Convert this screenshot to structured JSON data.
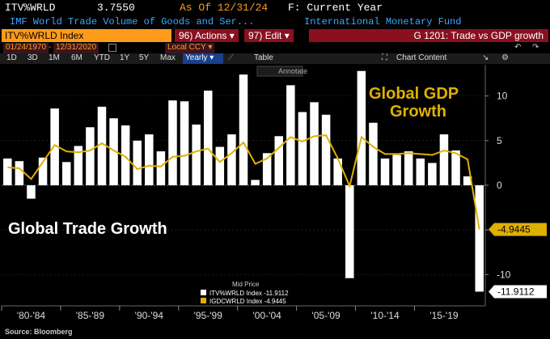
{
  "header": {
    "ticker": "ITV%WRLD",
    "value": "3.7550",
    "as_of": "As Of 12/31/24",
    "frequency_label": "F: Current Year",
    "description": "IMF World Trade Volume of Goods and Ser...",
    "source_name": "International Monetary Fund"
  },
  "toolbar": {
    "security": "ITV%WRLD Index",
    "actions_label": "96) Actions ▾",
    "edit_label": "97) Edit ▾",
    "chart_title": "G 1201: Trade vs GDP growth",
    "start_date": "01/24/1970",
    "end_date": "12/31/2020",
    "currency": "Local CCY",
    "periods": [
      "1D",
      "3D",
      "1M",
      "6M",
      "YTD",
      "1Y",
      "5Y",
      "Max"
    ],
    "selected_period": "Yearly",
    "table_label": "Table",
    "chart_content_label": "Chart Content"
  },
  "colors": {
    "trade_bars": "#ffffff",
    "gdp_line": "#e0b000",
    "accent_orange": "#ff9b1a",
    "header_red": "#8a1020"
  },
  "chart_data": {
    "type": "bar",
    "title": "",
    "xlabel": "",
    "ylabel": "",
    "ylim": [
      -13.5,
      13.5
    ],
    "yticks": [
      -10,
      -5,
      0,
      5,
      10
    ],
    "x_tick_labels": [
      "'80-'84",
      "'85-'89",
      "'90-'94",
      "'95-'99",
      "'00-'04",
      "'05-'09",
      "'10-'14",
      "'15-'19"
    ],
    "annotations": [
      "Global Trade Growth",
      "Global GDP Growth"
    ],
    "annotate_button": "Annotate",
    "legend_header": "Mid Price",
    "categories": [
      "1980",
      "1981",
      "1982",
      "1983",
      "1984",
      "1985",
      "1986",
      "1987",
      "1988",
      "1989",
      "1990",
      "1991",
      "1992",
      "1993",
      "1994",
      "1995",
      "1996",
      "1997",
      "1998",
      "1999",
      "2000",
      "2001",
      "2002",
      "2003",
      "2004",
      "2005",
      "2006",
      "2007",
      "2008",
      "2009",
      "2010",
      "2011",
      "2012",
      "2013",
      "2014",
      "2015",
      "2016",
      "2017",
      "2018",
      "2019",
      "2020"
    ],
    "series": [
      {
        "name": "ITV%WRLD Index -11.9112",
        "kind": "bar",
        "values": [
          3.0,
          2.7,
          -1.5,
          3.1,
          8.6,
          2.6,
          4.4,
          6.5,
          8.8,
          7.5,
          6.7,
          5.0,
          5.7,
          3.8,
          9.5,
          9.4,
          6.8,
          10.6,
          4.3,
          5.7,
          12.4,
          0.6,
          3.6,
          5.5,
          11.2,
          8.2,
          9.3,
          7.9,
          3.0,
          -10.4,
          12.8,
          7.0,
          3.0,
          3.4,
          3.8,
          3.0,
          2.5,
          5.7,
          3.9,
          1.0,
          -11.9112
        ],
        "last_label": "-11.9112"
      },
      {
        "name": "IGDCWRLD Index -4.9445",
        "kind": "line",
        "values": [
          2.0,
          1.9,
          0.7,
          2.6,
          4.5,
          3.8,
          3.7,
          3.9,
          4.7,
          3.9,
          3.2,
          1.8,
          2.2,
          2.1,
          3.2,
          3.3,
          3.8,
          4.1,
          2.6,
          3.6,
          4.8,
          2.4,
          3.0,
          4.2,
          5.4,
          4.9,
          5.5,
          5.6,
          3.0,
          -0.1,
          5.4,
          4.3,
          3.5,
          3.5,
          3.6,
          3.5,
          3.4,
          3.9,
          3.6,
          2.9,
          -4.9445
        ],
        "last_label": "-4.9445"
      }
    ]
  },
  "footer": {
    "source": "Source: Bloomberg"
  }
}
